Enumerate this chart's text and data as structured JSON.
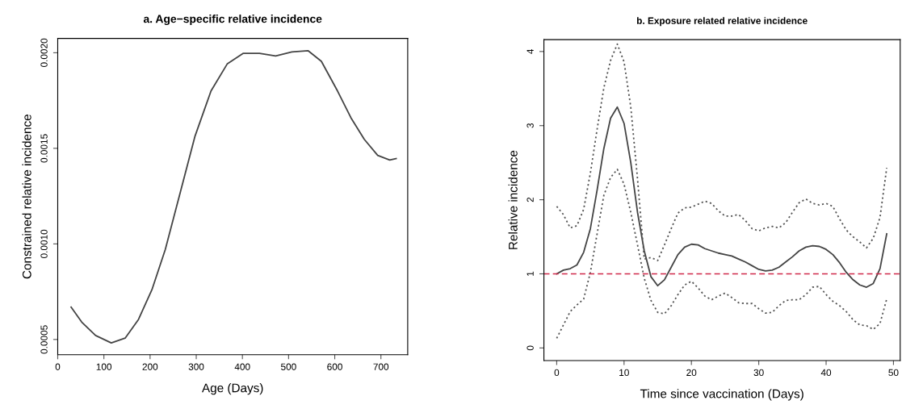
{
  "chart_data": [
    {
      "type": "line",
      "title": "a. Age−specific relative incidence",
      "xlabel": "Age (Days)",
      "ylabel": "Constrained relative incidence",
      "xlim": [
        0,
        758
      ],
      "xticks": [
        0,
        100,
        200,
        300,
        400,
        500,
        600,
        700
      ],
      "ylim": [
        0.00042,
        0.002075
      ],
      "yticks": [
        {
          "value": 0.0005,
          "label": "0.0005"
        },
        {
          "value": 0.001,
          "label": "0.0010"
        },
        {
          "value": 0.0015,
          "label": "0.0015"
        },
        {
          "value": 0.002,
          "label": "0.0020"
        }
      ],
      "grid": false,
      "legend": false,
      "marker": "none",
      "series": [
        {
          "color": "#444444",
          "line_style": "solid",
          "x": [
            29,
            52,
            82,
            116,
            146,
            175,
            204,
            233,
            262,
            297,
            332,
            367,
            402,
            437,
            472,
            507,
            542,
            571,
            606,
            635,
            664,
            693,
            719,
            733
          ],
          "values": [
            0.000669,
            0.000591,
            0.000521,
            0.000482,
            0.000507,
            0.000605,
            0.00076,
            0.000971,
            0.001238,
            0.001561,
            0.0018,
            0.001941,
            0.001997,
            0.001997,
            0.001983,
            0.002004,
            0.002011,
            0.001955,
            0.0018,
            0.00166,
            0.001547,
            0.001463,
            0.001439,
            0.001446
          ]
        }
      ]
    },
    {
      "type": "line",
      "title": "b. Exposure related relative incidence",
      "xlabel": "Time since vaccination (Days)",
      "ylabel": "Relative incidence",
      "xlim": [
        -1.9,
        51
      ],
      "xticks": [
        0,
        10,
        20,
        30,
        40,
        50
      ],
      "ylim": [
        -0.17,
        4.16
      ],
      "yticks": [
        0,
        1,
        2,
        3,
        4
      ],
      "grid": false,
      "legend": false,
      "marker": "none",
      "ref_lines": [
        {
          "axis": "y",
          "value": 1,
          "color": "#d0284a",
          "line_style": "dashed"
        }
      ],
      "x": [
        0,
        1,
        2,
        3,
        4,
        5,
        6,
        7,
        8,
        9,
        10,
        11,
        12,
        13,
        14,
        15,
        16,
        17,
        18,
        19,
        20,
        21,
        22,
        23,
        24,
        25,
        26,
        27,
        28,
        29,
        30,
        31,
        32,
        33,
        34,
        35,
        36,
        37,
        38,
        39,
        40,
        41,
        42,
        43,
        44,
        45,
        46,
        47,
        48,
        49
      ],
      "series": [
        {
          "color": "#444444",
          "line_style": "solid",
          "values": [
            1.0,
            1.05,
            1.07,
            1.12,
            1.29,
            1.61,
            2.13,
            2.69,
            3.1,
            3.25,
            3.03,
            2.5,
            1.83,
            1.31,
            0.96,
            0.84,
            0.92,
            1.09,
            1.26,
            1.36,
            1.4,
            1.39,
            1.34,
            1.31,
            1.28,
            1.26,
            1.24,
            1.2,
            1.16,
            1.11,
            1.06,
            1.04,
            1.05,
            1.09,
            1.16,
            1.23,
            1.31,
            1.36,
            1.38,
            1.37,
            1.33,
            1.26,
            1.15,
            1.02,
            0.92,
            0.85,
            0.82,
            0.87,
            1.07,
            1.54
          ]
        },
        {
          "color": "#555555",
          "line_style": "dotted",
          "values": [
            1.91,
            1.8,
            1.62,
            1.65,
            1.87,
            2.36,
            2.95,
            3.51,
            3.88,
            4.1,
            3.86,
            3.25,
            2.28,
            1.2,
            1.22,
            1.18,
            1.39,
            1.61,
            1.82,
            1.89,
            1.9,
            1.94,
            1.98,
            1.95,
            1.85,
            1.78,
            1.78,
            1.8,
            1.72,
            1.61,
            1.58,
            1.62,
            1.64,
            1.62,
            1.69,
            1.83,
            1.96,
            2.01,
            1.95,
            1.93,
            1.95,
            1.91,
            1.74,
            1.59,
            1.5,
            1.43,
            1.35,
            1.48,
            1.76,
            2.43
          ]
        },
        {
          "color": "#555555",
          "line_style": "dotted",
          "values": [
            0.13,
            0.31,
            0.49,
            0.58,
            0.66,
            1.02,
            1.54,
            2.06,
            2.3,
            2.41,
            2.21,
            1.83,
            1.39,
            0.94,
            0.64,
            0.48,
            0.46,
            0.57,
            0.72,
            0.85,
            0.9,
            0.81,
            0.7,
            0.65,
            0.7,
            0.74,
            0.68,
            0.61,
            0.6,
            0.6,
            0.53,
            0.47,
            0.48,
            0.57,
            0.64,
            0.65,
            0.65,
            0.72,
            0.82,
            0.83,
            0.72,
            0.63,
            0.57,
            0.49,
            0.38,
            0.31,
            0.3,
            0.25,
            0.33,
            0.66
          ]
        }
      ]
    }
  ]
}
